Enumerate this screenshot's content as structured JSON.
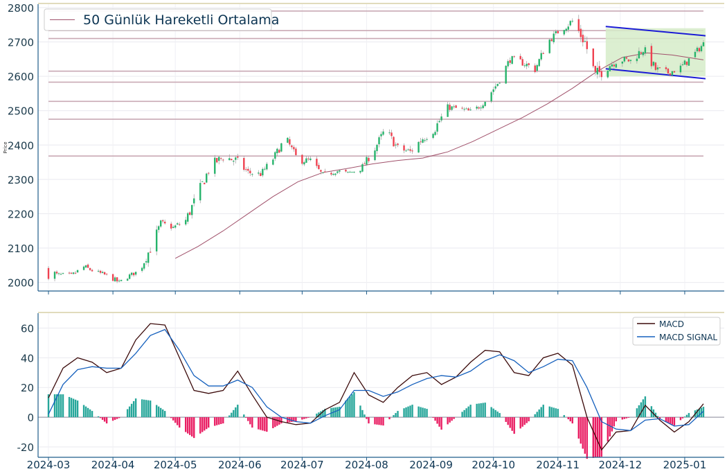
{
  "chart_data": [
    {
      "type": "candlestick",
      "title": "",
      "ylabel": "Price",
      "ylim": [
        1975,
        2810
      ],
      "yticks": [
        2000,
        2100,
        2200,
        2300,
        2400,
        2500,
        2600,
        2700,
        2800
      ],
      "xlim": [
        "2024-02-25",
        "2025-01-20"
      ],
      "legend": {
        "position": "top-left",
        "entries": [
          "50 Günlük Hareketli Ortalama"
        ]
      },
      "grid": "horizontal",
      "colors": {
        "up": "#26b36b",
        "down": "#ef4150",
        "ma": "#a0506a",
        "hlines": "#c9a9b4",
        "channel": "#1a1ad6",
        "channel_fill": "#d6ecc9",
        "frame": "#1f5c8a",
        "topline": "#d7cfa6"
      },
      "horizontal_levels": [
        2790,
        2733,
        2710,
        2615,
        2583,
        2527,
        2475,
        2368
      ],
      "channel": {
        "upper": [
          [
            "2024-11-24",
            2745
          ],
          [
            "2025-01-11",
            2718
          ]
        ],
        "lower": [
          [
            "2024-11-24",
            2622
          ],
          [
            "2025-01-11",
            2593
          ]
        ],
        "box": {
          "x": [
            "2024-11-24",
            "2025-01-11"
          ],
          "y": [
            2600,
            2740
          ]
        }
      },
      "anchors": [
        [
          "2024-03-01",
          2035,
          55
        ],
        [
          "2024-03-05",
          2022,
          18
        ],
        [
          "2024-03-12",
          2020,
          15
        ],
        [
          "2024-03-18",
          2045,
          20
        ],
        [
          "2024-03-24",
          2030,
          15
        ],
        [
          "2024-03-30",
          2018,
          18
        ],
        [
          "2024-04-04",
          2000,
          15
        ],
        [
          "2024-04-09",
          2020,
          15
        ],
        [
          "2024-04-14",
          2035,
          15
        ],
        [
          "2024-04-19",
          2100,
          40
        ],
        [
          "2024-04-24",
          2170,
          30
        ],
        [
          "2024-04-30",
          2160,
          15
        ],
        [
          "2024-05-06",
          2180,
          35
        ],
        [
          "2024-05-12",
          2260,
          40
        ],
        [
          "2024-05-18",
          2340,
          35
        ],
        [
          "2024-05-24",
          2365,
          30
        ],
        [
          "2024-05-30",
          2355,
          35
        ],
        [
          "2024-06-05",
          2320,
          25
        ],
        [
          "2024-06-11",
          2315,
          20
        ],
        [
          "2024-06-17",
          2360,
          25
        ],
        [
          "2024-06-23",
          2420,
          30
        ],
        [
          "2024-06-29",
          2355,
          25
        ],
        [
          "2024-07-05",
          2355,
          20
        ],
        [
          "2024-07-11",
          2310,
          25
        ],
        [
          "2024-07-17",
          2325,
          20
        ],
        [
          "2024-07-23",
          2318,
          15
        ],
        [
          "2024-07-29",
          2330,
          15
        ],
        [
          "2024-08-04",
          2380,
          30
        ],
        [
          "2024-08-10",
          2445,
          30
        ],
        [
          "2024-08-16",
          2390,
          30
        ],
        [
          "2024-08-22",
          2380,
          30
        ],
        [
          "2024-08-28",
          2420,
          35
        ],
        [
          "2024-09-03",
          2450,
          35
        ],
        [
          "2024-09-09",
          2510,
          20
        ],
        [
          "2024-09-15",
          2505,
          20
        ],
        [
          "2024-09-21",
          2495,
          20
        ],
        [
          "2024-09-27",
          2530,
          25
        ],
        [
          "2024-10-03",
          2580,
          25
        ],
        [
          "2024-10-09",
          2650,
          25
        ],
        [
          "2024-10-15",
          2640,
          25
        ],
        [
          "2024-10-21",
          2620,
          25
        ],
        [
          "2024-10-27",
          2700,
          25
        ],
        [
          "2024-11-02",
          2735,
          20
        ],
        [
          "2024-11-08",
          2760,
          35
        ],
        [
          "2024-11-14",
          2700,
          50
        ],
        [
          "2024-11-19",
          2600,
          55
        ],
        [
          "2024-11-24",
          2625,
          35
        ],
        [
          "2024-11-30",
          2650,
          30
        ],
        [
          "2024-12-06",
          2645,
          25
        ],
        [
          "2024-12-12",
          2680,
          35
        ],
        [
          "2024-12-18",
          2620,
          30
        ],
        [
          "2024-12-24",
          2610,
          20
        ],
        [
          "2024-12-30",
          2625,
          25
        ],
        [
          "2025-01-05",
          2660,
          25
        ],
        [
          "2025-01-10",
          2695,
          20
        ]
      ],
      "moving_average": [
        [
          "2024-05-01",
          2070
        ],
        [
          "2024-05-12",
          2105
        ],
        [
          "2024-05-24",
          2150
        ],
        [
          "2024-06-05",
          2200
        ],
        [
          "2024-06-17",
          2250
        ],
        [
          "2024-06-29",
          2293
        ],
        [
          "2024-07-11",
          2320
        ],
        [
          "2024-07-23",
          2332
        ],
        [
          "2024-08-04",
          2345
        ],
        [
          "2024-08-16",
          2355
        ],
        [
          "2024-08-28",
          2362
        ],
        [
          "2024-09-09",
          2380
        ],
        [
          "2024-09-21",
          2410
        ],
        [
          "2024-10-03",
          2445
        ],
        [
          "2024-10-15",
          2480
        ],
        [
          "2024-10-27",
          2520
        ],
        [
          "2024-11-08",
          2565
        ],
        [
          "2024-11-20",
          2615
        ],
        [
          "2024-12-02",
          2655
        ],
        [
          "2024-12-14",
          2668
        ],
        [
          "2024-12-26",
          2662
        ],
        [
          "2025-01-10",
          2648
        ]
      ],
      "xticks": [
        "2024-03",
        "2024-04",
        "2024-05",
        "2024-06",
        "2024-07",
        "2024-08",
        "2024-09",
        "2024-10",
        "2024-11",
        "2024-12",
        "2025-01"
      ]
    },
    {
      "type": "line+bar",
      "ylim": [
        -27,
        70
      ],
      "yticks": [
        -20,
        0,
        20,
        40,
        60
      ],
      "legend": {
        "position": "top-right",
        "entries": [
          "MACD",
          "MACD SIGNAL"
        ]
      },
      "series": [
        {
          "name": "MACD",
          "color": "#3b0a0a",
          "points": [
            [
              "2024-03-01",
              13
            ],
            [
              "2024-03-08",
              33
            ],
            [
              "2024-03-15",
              40
            ],
            [
              "2024-03-22",
              37
            ],
            [
              "2024-03-29",
              30
            ],
            [
              "2024-04-05",
              33
            ],
            [
              "2024-04-12",
              52
            ],
            [
              "2024-04-19",
              63
            ],
            [
              "2024-04-26",
              62
            ],
            [
              "2024-05-03",
              40
            ],
            [
              "2024-05-10",
              18
            ],
            [
              "2024-05-17",
              16
            ],
            [
              "2024-05-24",
              18
            ],
            [
              "2024-05-31",
              31
            ],
            [
              "2024-06-07",
              15
            ],
            [
              "2024-06-14",
              0
            ],
            [
              "2024-06-21",
              -3
            ],
            [
              "2024-06-28",
              -5
            ],
            [
              "2024-07-05",
              -4
            ],
            [
              "2024-07-12",
              5
            ],
            [
              "2024-07-19",
              10
            ],
            [
              "2024-07-26",
              30
            ],
            [
              "2024-08-02",
              15
            ],
            [
              "2024-08-09",
              10
            ],
            [
              "2024-08-16",
              20
            ],
            [
              "2024-08-23",
              28
            ],
            [
              "2024-08-30",
              30
            ],
            [
              "2024-09-06",
              22
            ],
            [
              "2024-09-13",
              27
            ],
            [
              "2024-09-20",
              37
            ],
            [
              "2024-09-27",
              45
            ],
            [
              "2024-10-04",
              44
            ],
            [
              "2024-10-11",
              30
            ],
            [
              "2024-10-18",
              28
            ],
            [
              "2024-10-25",
              40
            ],
            [
              "2024-11-01",
              43
            ],
            [
              "2024-11-08",
              35
            ],
            [
              "2024-11-15",
              0
            ],
            [
              "2024-11-22",
              -22
            ],
            [
              "2024-11-29",
              -10
            ],
            [
              "2024-12-06",
              -9
            ],
            [
              "2024-12-13",
              8
            ],
            [
              "2024-12-20",
              -2
            ],
            [
              "2024-12-27",
              -10
            ],
            [
              "2025-01-03",
              -3
            ],
            [
              "2025-01-10",
              9
            ]
          ]
        },
        {
          "name": "MACD SIGNAL",
          "color": "#1560bd",
          "points": [
            [
              "2024-03-01",
              2
            ],
            [
              "2024-03-08",
              22
            ],
            [
              "2024-03-15",
              32
            ],
            [
              "2024-03-22",
              34
            ],
            [
              "2024-03-29",
              33
            ],
            [
              "2024-04-05",
              33
            ],
            [
              "2024-04-12",
              43
            ],
            [
              "2024-04-19",
              55
            ],
            [
              "2024-04-26",
              59
            ],
            [
              "2024-05-03",
              45
            ],
            [
              "2024-05-10",
              28
            ],
            [
              "2024-05-17",
              21
            ],
            [
              "2024-05-24",
              21
            ],
            [
              "2024-05-31",
              25
            ],
            [
              "2024-06-07",
              20
            ],
            [
              "2024-06-14",
              7
            ],
            [
              "2024-06-21",
              0
            ],
            [
              "2024-06-28",
              -3
            ],
            [
              "2024-07-05",
              -4
            ],
            [
              "2024-07-12",
              1
            ],
            [
              "2024-07-19",
              5
            ],
            [
              "2024-07-26",
              18
            ],
            [
              "2024-08-02",
              18
            ],
            [
              "2024-08-09",
              14
            ],
            [
              "2024-08-16",
              17
            ],
            [
              "2024-08-23",
              22
            ],
            [
              "2024-08-30",
              26
            ],
            [
              "2024-09-06",
              28
            ],
            [
              "2024-09-13",
              27
            ],
            [
              "2024-09-20",
              31
            ],
            [
              "2024-09-27",
              38
            ],
            [
              "2024-10-04",
              42
            ],
            [
              "2024-10-11",
              38
            ],
            [
              "2024-10-18",
              30
            ],
            [
              "2024-10-25",
              34
            ],
            [
              "2024-11-01",
              39
            ],
            [
              "2024-11-08",
              38
            ],
            [
              "2024-11-15",
              20
            ],
            [
              "2024-11-22",
              -3
            ],
            [
              "2024-11-29",
              -8
            ],
            [
              "2024-12-06",
              -9
            ],
            [
              "2024-12-13",
              -2
            ],
            [
              "2024-12-20",
              -1
            ],
            [
              "2024-12-27",
              -6
            ],
            [
              "2025-01-03",
              -5
            ],
            [
              "2025-01-10",
              4
            ]
          ]
        }
      ],
      "histogram_colors": {
        "positive": "#26a69a",
        "negative": "#e91e63"
      },
      "xticks": [
        "2024-03",
        "2024-04",
        "2024-05",
        "2024-06",
        "2024-07",
        "2024-08",
        "2024-09",
        "2024-10",
        "2024-11",
        "2024-12",
        "2025-01"
      ]
    }
  ]
}
